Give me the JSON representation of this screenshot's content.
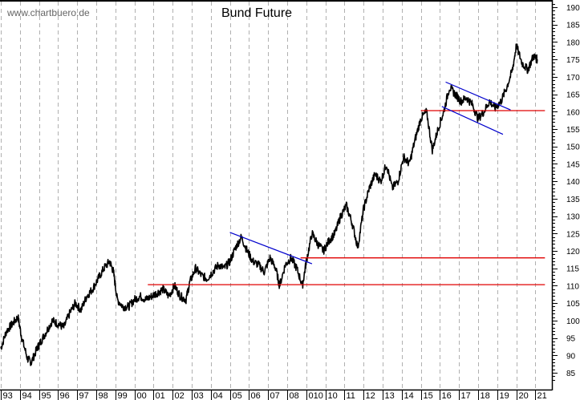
{
  "watermark": "www.chartbuero.de",
  "chart_data": {
    "type": "line",
    "title": "Bund Future",
    "xlabel": "",
    "ylabel": "",
    "ylim": [
      82,
      191
    ],
    "grid": {
      "vertical": true,
      "horizontal": false,
      "style": "dashed",
      "color": "#b0b0b0"
    },
    "y_axis_position": "right",
    "y_ticks": [
      85,
      90,
      95,
      100,
      105,
      110,
      115,
      120,
      125,
      130,
      135,
      140,
      145,
      150,
      155,
      160,
      165,
      170,
      175,
      180,
      185,
      190
    ],
    "x_tick_labels": [
      "93",
      "94",
      "95",
      "96",
      "97",
      "98",
      "99",
      "00",
      "01",
      "02",
      "03",
      "04",
      "05",
      "06",
      "07",
      "08",
      "010",
      "10",
      "11",
      "12",
      "13",
      "14",
      "15",
      "16",
      "17",
      "18",
      "19",
      "20",
      "21"
    ],
    "series": [
      {
        "name": "Bund Future",
        "color": "#000000",
        "x": [
          1993.0,
          1993.3,
          1993.6,
          1993.9,
          1994.1,
          1994.4,
          1994.6,
          1994.9,
          1995.1,
          1995.4,
          1995.7,
          1996.0,
          1996.3,
          1996.6,
          1996.9,
          1997.2,
          1997.5,
          1997.8,
          1998.1,
          1998.4,
          1998.7,
          1998.9,
          1999.1,
          1999.4,
          1999.7,
          2000.0,
          2000.3,
          2000.6,
          2000.9,
          2001.2,
          2001.5,
          2001.8,
          2002.1,
          2002.4,
          2002.7,
          2002.9,
          2003.2,
          2003.5,
          2003.8,
          2004.1,
          2004.4,
          2004.7,
          2005.0,
          2005.3,
          2005.6,
          2005.9,
          2006.2,
          2006.5,
          2006.8,
          2007.1,
          2007.4,
          2007.6,
          2007.9,
          2008.2,
          2008.5,
          2008.8,
          2009.0,
          2009.3,
          2009.6,
          2009.9,
          2010.2,
          2010.5,
          2010.8,
          2011.1,
          2011.4,
          2011.7,
          2012.0,
          2012.3,
          2012.6,
          2012.9,
          2013.2,
          2013.5,
          2013.8,
          2014.1,
          2014.4,
          2014.7,
          2015.0,
          2015.3,
          2015.6,
          2015.9,
          2016.2,
          2016.5,
          2016.8,
          2017.1,
          2017.4,
          2017.7,
          2018.0,
          2018.3,
          2018.6,
          2018.9,
          2019.2,
          2019.5,
          2019.8,
          2020.0,
          2020.3,
          2020.6,
          2020.9,
          2021.1
        ],
        "values": [
          92,
          97,
          99,
          101,
          95,
          89,
          88,
          92,
          94,
          97,
          100,
          99,
          98,
          102,
          105,
          103,
          107,
          109,
          112,
          115,
          117,
          114,
          106,
          104,
          104,
          106,
          107,
          106,
          107,
          108,
          109,
          107,
          110,
          107,
          106,
          111,
          115,
          113,
          112,
          114,
          116,
          115,
          117,
          121,
          124,
          120,
          117,
          116,
          114,
          118,
          115,
          110,
          116,
          118,
          115,
          110,
          117,
          125,
          122,
          120,
          123,
          125,
          130,
          133,
          128,
          121,
          132,
          138,
          142,
          140,
          145,
          138,
          140,
          147,
          145,
          152,
          158,
          160,
          149,
          155,
          160,
          167,
          165,
          163,
          164,
          162,
          158,
          160,
          163,
          161,
          163,
          167,
          172,
          179,
          174,
          172,
          176,
          175
        ]
      }
    ],
    "annotations": [
      {
        "type": "hline",
        "value": 110.3,
        "x_start": 2000.7,
        "x_end": 2021.5,
        "color": "#e00000"
      },
      {
        "type": "hline",
        "value": 118,
        "x_start": 2008.7,
        "x_end": 2021.5,
        "color": "#e00000"
      },
      {
        "type": "hline",
        "value": 160.3,
        "x_start": 2015.0,
        "x_end": 2021.5,
        "color": "#e00000"
      },
      {
        "type": "trendline",
        "from": [
          2005.0,
          125.3
        ],
        "to": [
          2009.3,
          116.3
        ],
        "color": "#0000cc"
      },
      {
        "type": "trendline",
        "from": [
          2016.3,
          168.5
        ],
        "to": [
          2019.7,
          160.5
        ],
        "color": "#0000cc"
      },
      {
        "type": "trendline",
        "from": [
          2016.1,
          161.5
        ],
        "to": [
          2019.3,
          153.5
        ],
        "color": "#0000cc"
      }
    ]
  }
}
